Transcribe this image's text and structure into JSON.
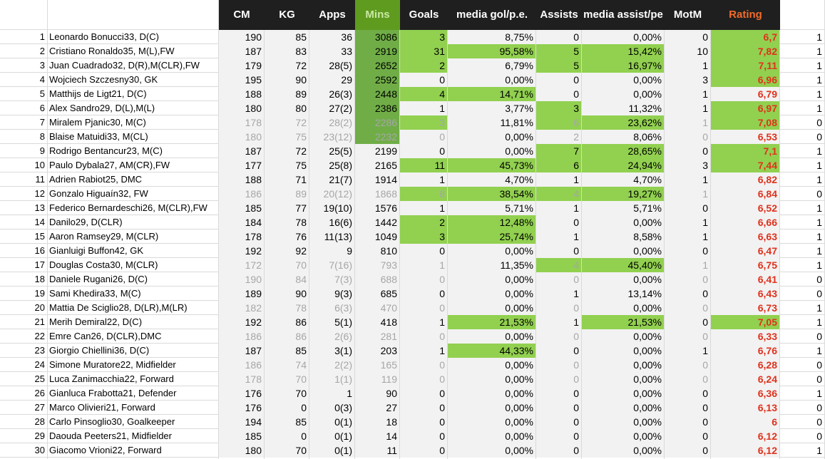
{
  "sheet": {
    "headers": [
      "CM",
      "KG",
      "Apps",
      "Mins",
      "Goals",
      "media gol/p.e.",
      "Assists",
      "media assist/pe",
      "MotM",
      "Rating"
    ],
    "colors": {
      "header_bg": "#1f1f1f",
      "header_text": "#ffffff",
      "mins_header_bg": "#5f9b1f",
      "mins_header_text": "#c9e9a5",
      "rating_header_text": "#f26b2a",
      "highlight_green": "#92d050",
      "mins_green": "#70ad47",
      "shaded": "#f2f2f2",
      "rating_text": "#e0311c",
      "faded_text": "#a6a6a6"
    },
    "rows": [
      {
        "n": "1",
        "name": "Leonardo Bonucci33, D(C)",
        "cm": "190",
        "kg": "85",
        "apps": "36",
        "mins": "3086",
        "goals": "3",
        "mgol": "8,75%",
        "assists": "0",
        "mass": "0,00%",
        "motm": "0",
        "rating": "6,7",
        "x": "1",
        "faded": false,
        "hl": [
          "mins",
          "goals",
          "rating"
        ]
      },
      {
        "n": "2",
        "name": "Cristiano Ronaldo35, M(L),FW",
        "cm": "187",
        "kg": "83",
        "apps": "33",
        "mins": "2919",
        "goals": "31",
        "mgol": "95,58%",
        "assists": "5",
        "mass": "15,42%",
        "motm": "10",
        "rating": "7,82",
        "x": "1",
        "faded": false,
        "hl": [
          "mins",
          "goals",
          "mgol",
          "assists",
          "mass",
          "rating"
        ]
      },
      {
        "n": "3",
        "name": "Juan Cuadrado32, D(R),M(CLR),FW",
        "cm": "179",
        "kg": "72",
        "apps": "28(5)",
        "mins": "2652",
        "goals": "2",
        "mgol": "6,79%",
        "assists": "5",
        "mass": "16,97%",
        "motm": "1",
        "rating": "7,11",
        "x": "1",
        "faded": false,
        "hl": [
          "mins",
          "goals",
          "assists",
          "mass",
          "rating"
        ]
      },
      {
        "n": "4",
        "name": "Wojciech Szczesny30, GK",
        "cm": "195",
        "kg": "90",
        "apps": "29",
        "mins": "2592",
        "goals": "0",
        "mgol": "0,00%",
        "assists": "0",
        "mass": "0,00%",
        "motm": "3",
        "rating": "6,96",
        "x": "1",
        "faded": false,
        "hl": [
          "mins",
          "rating"
        ]
      },
      {
        "n": "5",
        "name": "Matthijs de Ligt21, D(C)",
        "cm": "188",
        "kg": "89",
        "apps": "26(3)",
        "mins": "2448",
        "goals": "4",
        "mgol": "14,71%",
        "assists": "0",
        "mass": "0,00%",
        "motm": "1",
        "rating": "6,79",
        "x": "1",
        "faded": false,
        "hl": [
          "mins",
          "goals",
          "mgol"
        ]
      },
      {
        "n": "6",
        "name": "Alex Sandro29, D(L),M(L)",
        "cm": "180",
        "kg": "80",
        "apps": "27(2)",
        "mins": "2386",
        "goals": "1",
        "mgol": "3,77%",
        "assists": "3",
        "mass": "11,32%",
        "motm": "1",
        "rating": "6,97",
        "x": "1",
        "faded": false,
        "hl": [
          "mins",
          "assists",
          "rating"
        ]
      },
      {
        "n": "7",
        "name": "Miralem Pjanic30, M(C)",
        "cm": "178",
        "kg": "72",
        "apps": "28(2)",
        "mins": "2286",
        "goals": "3",
        "mgol": "11,81%",
        "assists": "6",
        "mass": "23,62%",
        "motm": "1",
        "rating": "7,08",
        "x": "0",
        "faded": true,
        "hl": [
          "mins",
          "goals",
          "assists",
          "mass",
          "rating"
        ]
      },
      {
        "n": "8",
        "name": "Blaise Matuidi33, M(CL)",
        "cm": "180",
        "kg": "75",
        "apps": "23(12)",
        "mins": "2232",
        "goals": "0",
        "mgol": "0,00%",
        "assists": "2",
        "mass": "8,06%",
        "motm": "0",
        "rating": "6,53",
        "x": "0",
        "faded": true,
        "hl": [
          "mins"
        ]
      },
      {
        "n": "9",
        "name": "Rodrigo Bentancur23, M(C)",
        "cm": "187",
        "kg": "72",
        "apps": "25(5)",
        "mins": "2199",
        "goals": "0",
        "mgol": "0,00%",
        "assists": "7",
        "mass": "28,65%",
        "motm": "0",
        "rating": "7,1",
        "x": "1",
        "faded": false,
        "hl": [
          "assists",
          "mass",
          "rating"
        ]
      },
      {
        "n": "10",
        "name": "Paulo Dybala27, AM(CR),FW",
        "cm": "177",
        "kg": "75",
        "apps": "25(8)",
        "mins": "2165",
        "goals": "11",
        "mgol": "45,73%",
        "assists": "6",
        "mass": "24,94%",
        "motm": "3",
        "rating": "7,44",
        "x": "1",
        "faded": false,
        "hl": [
          "goals",
          "mgol",
          "assists",
          "mass",
          "rating"
        ]
      },
      {
        "n": "11",
        "name": "Adrien Rabiot25, DMC",
        "cm": "188",
        "kg": "71",
        "apps": "21(7)",
        "mins": "1914",
        "goals": "1",
        "mgol": "4,70%",
        "assists": "1",
        "mass": "4,70%",
        "motm": "1",
        "rating": "6,82",
        "x": "1",
        "faded": false,
        "hl": []
      },
      {
        "n": "12",
        "name": "Gonzalo Higuaín32, FW",
        "cm": "186",
        "kg": "89",
        "apps": "20(12)",
        "mins": "1868",
        "goals": "8",
        "mgol": "38,54%",
        "assists": "4",
        "mass": "19,27%",
        "motm": "1",
        "rating": "6,84",
        "x": "0",
        "faded": true,
        "hl": [
          "goals",
          "mgol",
          "assists",
          "mass"
        ]
      },
      {
        "n": "13",
        "name": "Federico Bernardeschi26, M(CLR),FW",
        "cm": "185",
        "kg": "77",
        "apps": "19(10)",
        "mins": "1576",
        "goals": "1",
        "mgol": "5,71%",
        "assists": "1",
        "mass": "5,71%",
        "motm": "0",
        "rating": "6,52",
        "x": "1",
        "faded": false,
        "hl": []
      },
      {
        "n": "14",
        "name": "Danilo29, D(CLR)",
        "cm": "184",
        "kg": "78",
        "apps": "16(6)",
        "mins": "1442",
        "goals": "2",
        "mgol": "12,48%",
        "assists": "0",
        "mass": "0,00%",
        "motm": "1",
        "rating": "6,66",
        "x": "1",
        "faded": false,
        "hl": [
          "goals",
          "mgol"
        ]
      },
      {
        "n": "15",
        "name": "Aaron Ramsey29, M(CLR)",
        "cm": "178",
        "kg": "76",
        "apps": "11(13)",
        "mins": "1049",
        "goals": "3",
        "mgol": "25,74%",
        "assists": "1",
        "mass": "8,58%",
        "motm": "1",
        "rating": "6,63",
        "x": "1",
        "faded": false,
        "hl": [
          "goals",
          "mgol"
        ]
      },
      {
        "n": "16",
        "name": "Gianluigi Buffon42, GK",
        "cm": "192",
        "kg": "92",
        "apps": "9",
        "mins": "810",
        "goals": "0",
        "mgol": "0,00%",
        "assists": "0",
        "mass": "0,00%",
        "motm": "0",
        "rating": "6,47",
        "x": "1",
        "faded": false,
        "hl": []
      },
      {
        "n": "17",
        "name": "Douglas Costa30, M(CLR)",
        "cm": "172",
        "kg": "70",
        "apps": "7(16)",
        "mins": "793",
        "goals": "1",
        "mgol": "11,35%",
        "assists": "4",
        "mass": "45,40%",
        "motm": "1",
        "rating": "6,75",
        "x": "1",
        "faded": true,
        "hl": [
          "assists",
          "mass"
        ]
      },
      {
        "n": "18",
        "name": "Daniele Rugani26, D(C)",
        "cm": "190",
        "kg": "84",
        "apps": "7(3)",
        "mins": "688",
        "goals": "0",
        "mgol": "0,00%",
        "assists": "0",
        "mass": "0,00%",
        "motm": "0",
        "rating": "6,41",
        "x": "0",
        "faded": true,
        "hl": []
      },
      {
        "n": "19",
        "name": "Sami Khedira33, M(C)",
        "cm": "189",
        "kg": "90",
        "apps": "9(3)",
        "mins": "685",
        "goals": "0",
        "mgol": "0,00%",
        "assists": "1",
        "mass": "13,14%",
        "motm": "0",
        "rating": "6,43",
        "x": "0",
        "faded": false,
        "hl": []
      },
      {
        "n": "20",
        "name": "Mattia De Sciglio28, D(LR),M(LR)",
        "cm": "182",
        "kg": "78",
        "apps": "6(3)",
        "mins": "470",
        "goals": "0",
        "mgol": "0,00%",
        "assists": "0",
        "mass": "0,00%",
        "motm": "0",
        "rating": "6,73",
        "x": "1",
        "faded": true,
        "hl": []
      },
      {
        "n": "21",
        "name": "Merih Demiral22, D(C)",
        "cm": "192",
        "kg": "86",
        "apps": "5(1)",
        "mins": "418",
        "goals": "1",
        "mgol": "21,53%",
        "assists": "1",
        "mass": "21,53%",
        "motm": "0",
        "rating": "7,05",
        "x": "1",
        "faded": false,
        "hl": [
          "mgol",
          "mass",
          "rating"
        ]
      },
      {
        "n": "22",
        "name": "Emre Can26, D(CLR),DMC",
        "cm": "186",
        "kg": "86",
        "apps": "2(6)",
        "mins": "281",
        "goals": "0",
        "mgol": "0,00%",
        "assists": "0",
        "mass": "0,00%",
        "motm": "0",
        "rating": "6,33",
        "x": "0",
        "faded": true,
        "hl": []
      },
      {
        "n": "23",
        "name": "Giorgio Chiellini36, D(C)",
        "cm": "187",
        "kg": "85",
        "apps": "3(1)",
        "mins": "203",
        "goals": "1",
        "mgol": "44,33%",
        "assists": "0",
        "mass": "0,00%",
        "motm": "1",
        "rating": "6,76",
        "x": "1",
        "faded": false,
        "hl": [
          "mgol"
        ]
      },
      {
        "n": "24",
        "name": "Simone Muratore22, Midfielder",
        "cm": "186",
        "kg": "74",
        "apps": "2(2)",
        "mins": "165",
        "goals": "0",
        "mgol": "0,00%",
        "assists": "0",
        "mass": "0,00%",
        "motm": "0",
        "rating": "6,28",
        "x": "0",
        "faded": true,
        "hl": []
      },
      {
        "n": "25",
        "name": "Luca Zanimacchia22, Forward",
        "cm": "178",
        "kg": "70",
        "apps": "1(1)",
        "mins": "119",
        "goals": "0",
        "mgol": "0,00%",
        "assists": "0",
        "mass": "0,00%",
        "motm": "0",
        "rating": "6,24",
        "x": "0",
        "faded": true,
        "hl": []
      },
      {
        "n": "26",
        "name": "Gianluca Frabotta21, Defender",
        "cm": "176",
        "kg": "70",
        "apps": "1",
        "mins": "90",
        "goals": "0",
        "mgol": "0,00%",
        "assists": "0",
        "mass": "0,00%",
        "motm": "0",
        "rating": "6,36",
        "x": "1",
        "faded": false,
        "hl": []
      },
      {
        "n": "27",
        "name": "Marco Olivieri21, Forward",
        "cm": "176",
        "kg": "0",
        "apps": "0(3)",
        "mins": "27",
        "goals": "0",
        "mgol": "0,00%",
        "assists": "0",
        "mass": "0,00%",
        "motm": "0",
        "rating": "6,13",
        "x": "0",
        "faded": false,
        "hl": []
      },
      {
        "n": "28",
        "name": "Carlo Pinsoglio30, Goalkeeper",
        "cm": "194",
        "kg": "85",
        "apps": "0(1)",
        "mins": "18",
        "goals": "0",
        "mgol": "0,00%",
        "assists": "0",
        "mass": "0,00%",
        "motm": "0",
        "rating": "6",
        "x": "0",
        "faded": false,
        "hl": []
      },
      {
        "n": "29",
        "name": "Daouda Peeters21, Midfielder",
        "cm": "185",
        "kg": "0",
        "apps": "0(1)",
        "mins": "14",
        "goals": "0",
        "mgol": "0,00%",
        "assists": "0",
        "mass": "0,00%",
        "motm": "0",
        "rating": "6,12",
        "x": "0",
        "faded": false,
        "hl": []
      },
      {
        "n": "30",
        "name": "Giacomo Vrioni22, Forward",
        "cm": "180",
        "kg": "70",
        "apps": "0(1)",
        "mins": "11",
        "goals": "0",
        "mgol": "0,00%",
        "assists": "0",
        "mass": "0,00%",
        "motm": "0",
        "rating": "6,12",
        "x": "1",
        "faded": false,
        "hl": []
      }
    ]
  }
}
